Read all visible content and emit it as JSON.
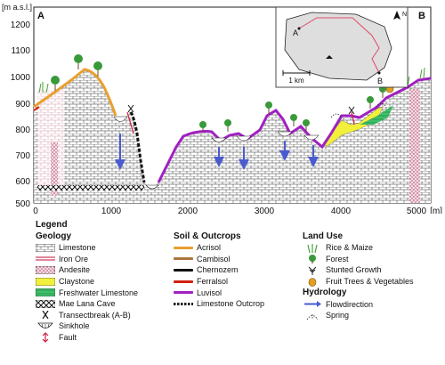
{
  "diagram": {
    "y_axis_label": "[m a.s.l.]",
    "x_axis_label": "[m]",
    "y_ticks": [
      "1200",
      "1100",
      "1000",
      "900",
      "800",
      "700",
      "600",
      "500"
    ],
    "x_ticks": [
      "0",
      "1000",
      "2000",
      "3000",
      "4000",
      "5000"
    ],
    "corner_a": "A",
    "corner_b": "B",
    "inset": {
      "label_a": "A",
      "label_b": "B",
      "scale_label": "1 km",
      "north_label": "N"
    }
  },
  "legend": {
    "title": "Legend",
    "geology": {
      "heading": "Geology",
      "items": [
        {
          "label": "Limestone",
          "icon": "limestone-swatch"
        },
        {
          "label": "Iron Ore",
          "icon": "iron-ore-swatch"
        },
        {
          "label": "Andesite",
          "icon": "andesite-swatch"
        },
        {
          "label": "Claystone",
          "icon": "claystone-swatch"
        },
        {
          "label": "Freshwater Limestone",
          "icon": "freshwater-limestone-swatch"
        },
        {
          "label": "Mae Lana Cave",
          "icon": "cave-swatch"
        },
        {
          "label": "Transectbreak (A-B)",
          "icon": "transectbreak-icon"
        },
        {
          "label": "Sinkhole",
          "icon": "sinkhole-icon"
        },
        {
          "label": "Fault",
          "icon": "fault-icon"
        }
      ]
    },
    "soil": {
      "heading": "Soil & Outcrops",
      "items": [
        {
          "label": "Acrisol",
          "color": "#e8a030"
        },
        {
          "label": "Cambisol",
          "color": "#a8763e"
        },
        {
          "label": "Chernozem",
          "color": "#111111"
        },
        {
          "label": "Ferralsol",
          "color": "#d02010"
        },
        {
          "label": "Luvisol",
          "color": "#a020c0"
        },
        {
          "label": "Limestone Outcrop",
          "color": "#222222"
        }
      ]
    },
    "land_use": {
      "heading": "Land Use",
      "items": [
        {
          "label": "Rice & Maize",
          "icon": "rice-maize-icon"
        },
        {
          "label": "Forest",
          "icon": "forest-icon"
        },
        {
          "label": "Stunted Growth",
          "icon": "stunted-growth-icon"
        },
        {
          "label": "Fruit Trees & Vegetables",
          "icon": "fruit-trees-icon"
        }
      ]
    },
    "hydrology": {
      "heading": "Hydrology",
      "items": [
        {
          "label": "Flowdirection",
          "icon": "flow-arrow-icon"
        },
        {
          "label": "Spring",
          "icon": "spring-icon"
        }
      ]
    }
  }
}
